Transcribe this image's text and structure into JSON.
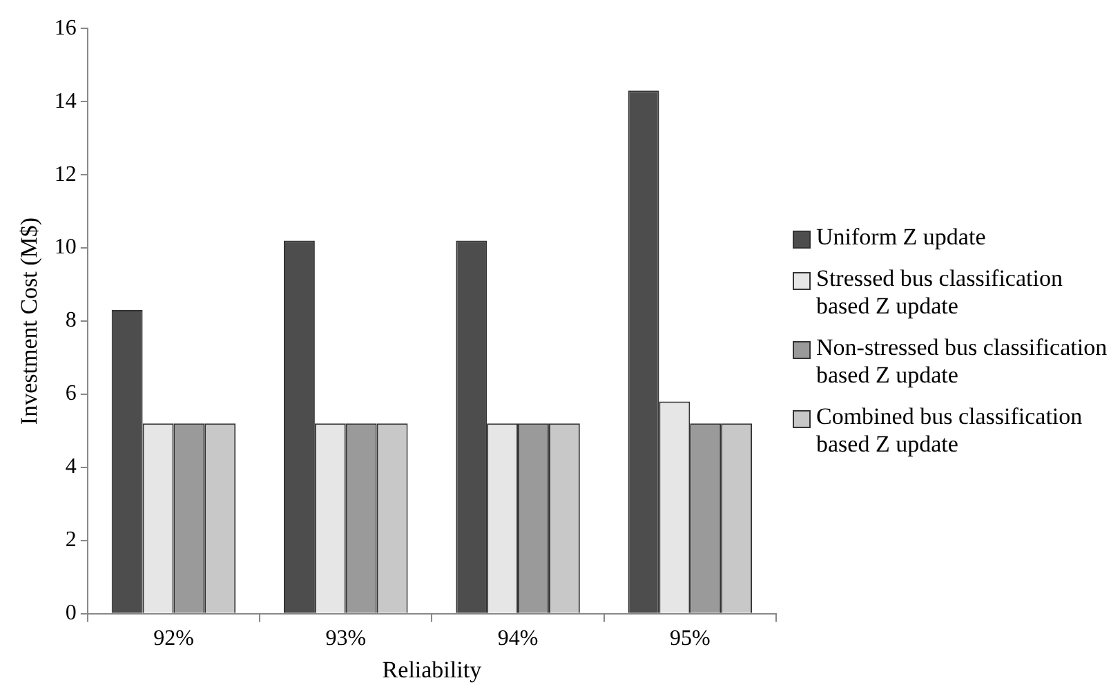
{
  "chart_data": {
    "type": "bar",
    "xlabel": "Reliability",
    "ylabel": "Investment Cost (M$)",
    "categories": [
      "92%",
      "93%",
      "94%",
      "95%"
    ],
    "series": [
      {
        "name": "Uniform Z update",
        "color": "#4d4d4d",
        "values": [
          8.3,
          10.2,
          10.2,
          14.3
        ]
      },
      {
        "name": "Stressed bus classification based Z update",
        "color": "#e6e6e6",
        "values": [
          5.2,
          5.2,
          5.2,
          5.8
        ]
      },
      {
        "name": "Non-stressed bus classification based Z update",
        "color": "#9a9a9a",
        "values": [
          5.2,
          5.2,
          5.2,
          5.2
        ]
      },
      {
        "name": "Combined bus classification based Z update",
        "color": "#c8c8c8",
        "values": [
          5.2,
          5.2,
          5.2,
          5.2
        ]
      }
    ],
    "ylim": [
      0,
      16
    ],
    "yticks": [
      0,
      2,
      4,
      6,
      8,
      10,
      12,
      14,
      16
    ],
    "grid": false,
    "legend": "right"
  }
}
